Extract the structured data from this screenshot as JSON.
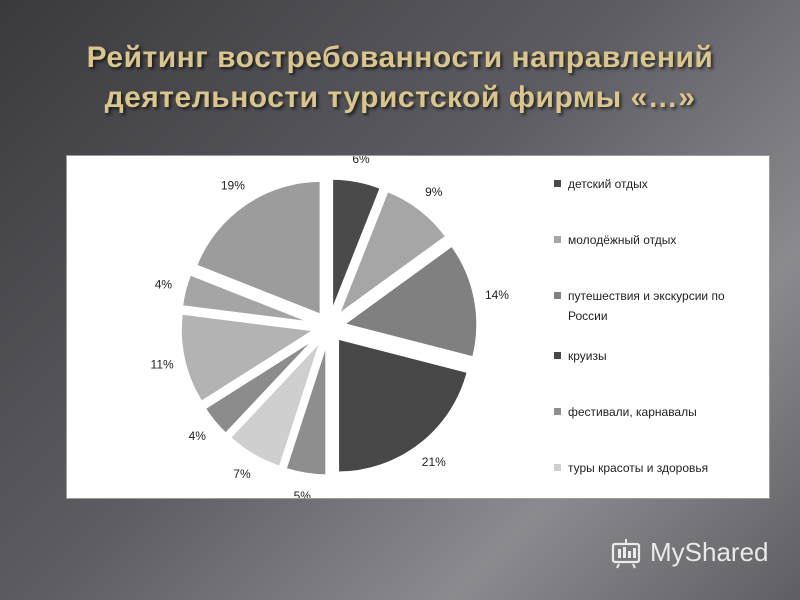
{
  "title": {
    "line1": "Рейтинг востребованности направлений",
    "line2": "деятельности туристской фирмы «…»"
  },
  "chart_data": {
    "type": "pie",
    "exploded": true,
    "legend_placement": "right",
    "slices": [
      {
        "name": "детский отдых",
        "value": 6,
        "label": "6%",
        "color": "#4a4a4a"
      },
      {
        "name": "молодёжный отдых",
        "value": 9,
        "label": "9%",
        "color": "#a6a6a6"
      },
      {
        "name": "путешествия  и экскурсии по России",
        "value": 14,
        "label": "14%",
        "color": "#808080"
      },
      {
        "name": "круизы",
        "value": 21,
        "label": "21%",
        "color": "#474747"
      },
      {
        "name": "фестивали, карнавалы",
        "value": 5,
        "label": "5%",
        "color": "#8e8e8e"
      },
      {
        "name": "туры красоты и здоровья",
        "value": 7,
        "label": "7%",
        "color": "#cfcfcf"
      },
      {
        "name": "",
        "value": 4,
        "label": "4%",
        "color": "#8c8c8c"
      },
      {
        "name": "",
        "value": 11,
        "label": "11%",
        "color": "#b3b3b3"
      },
      {
        "name": "",
        "value": 4,
        "label": "4%",
        "color": "#a5a5a5"
      },
      {
        "name": "",
        "value": 19,
        "label": "19%",
        "color": "#9c9c9c"
      }
    ],
    "legend": [
      {
        "label": "детский отдых",
        "color": "#4a4a4a"
      },
      {
        "label": "молодёжный отдых",
        "color": "#a6a6a6"
      },
      {
        "label": "путешествия  и экскурсии по России",
        "color": "#808080"
      },
      {
        "label": "круизы",
        "color": "#474747"
      },
      {
        "label": "фестивали, карнавалы",
        "color": "#8e8e8e"
      },
      {
        "label": "туры красоты и здоровья",
        "color": "#cfcfcf"
      }
    ]
  },
  "watermark": {
    "text": "MyShared"
  }
}
